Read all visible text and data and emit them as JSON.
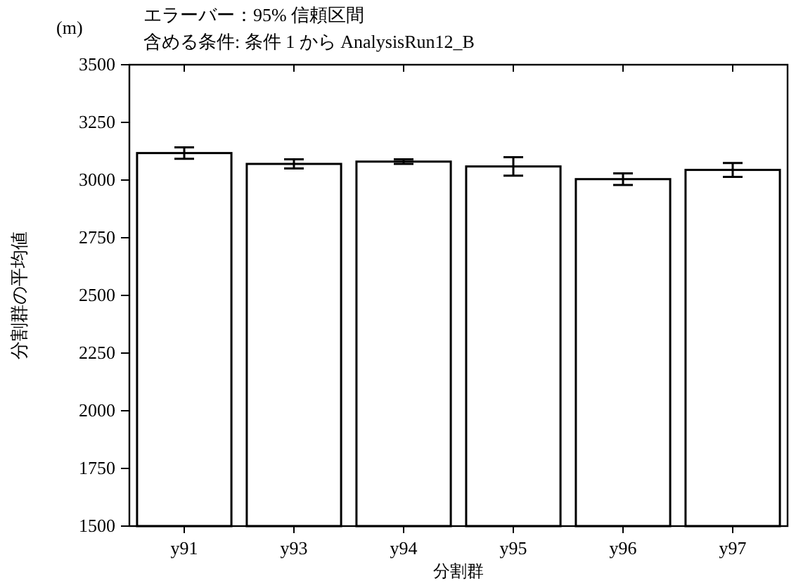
{
  "chart_data": {
    "type": "bar",
    "title": "エラーバー：95% 信頼区間",
    "subtitle": "含める条件: 条件 1 から AnalysisRun12_B",
    "xlabel": "分割群",
    "ylabel": "分割群の平均値",
    "annotations": [
      "(m)"
    ],
    "categories": [
      "y91",
      "y93",
      "y94",
      "y95",
      "y96",
      "y97"
    ],
    "values": [
      3117,
      3070,
      3080,
      3059,
      3004,
      3044
    ],
    "errors": [
      25,
      20,
      10,
      40,
      25,
      30
    ],
    "color": "#ffffff",
    "ylim": [
      1500,
      3500
    ],
    "yticks": [
      1500,
      1750,
      2000,
      2250,
      2500,
      2750,
      3000,
      3250,
      3500
    ],
    "grid": false
  }
}
